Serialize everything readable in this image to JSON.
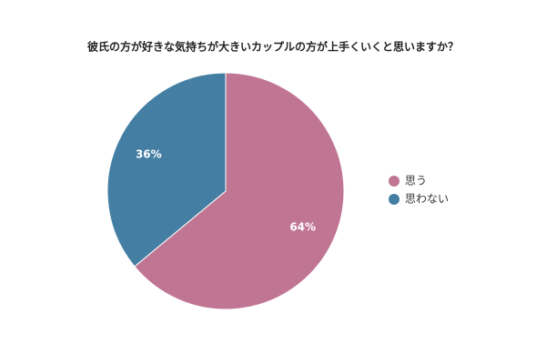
{
  "chart_data": {
    "type": "pie",
    "title": "彼氏の方が好きな気持ちが大きいカップルの方が上手くいくと思いますか？",
    "categories": [
      "思う",
      "思わない"
    ],
    "values": [
      64,
      36
    ],
    "value_labels": [
      "64%",
      "36%"
    ],
    "colors": [
      "#c07593",
      "#447fa3"
    ]
  }
}
